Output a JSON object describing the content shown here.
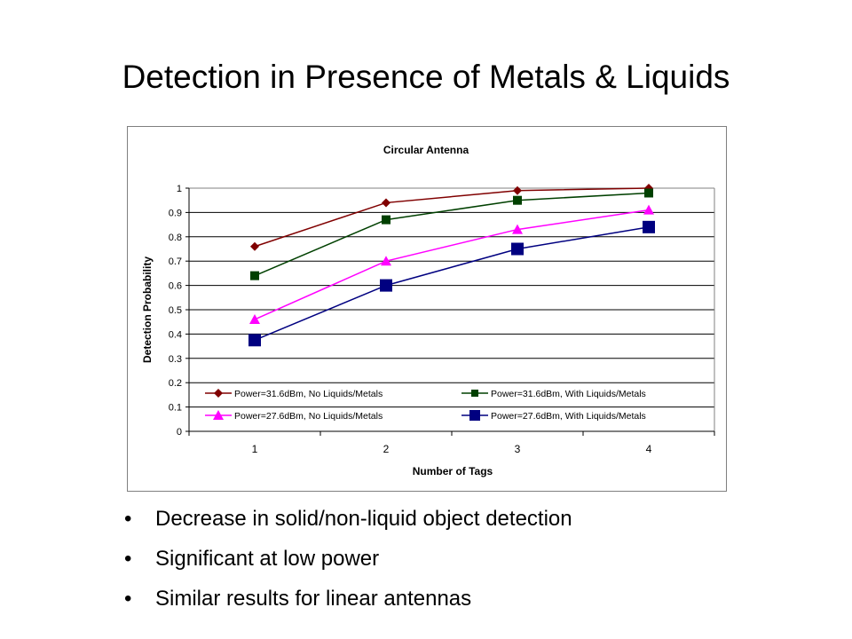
{
  "slide": {
    "title": "Detection in Presence of Metals & Liquids",
    "bullets": [
      "Decrease in solid/non-liquid object detection",
      "Significant at low power",
      "Similar results for linear antennas"
    ],
    "bullet_glyph": "•"
  },
  "chart_data": {
    "type": "line",
    "title": "Circular Antenna",
    "xlabel": "Number of Tags",
    "ylabel": "Detection Probability",
    "categories": [
      "1",
      "2",
      "3",
      "4"
    ],
    "ylim": [
      0,
      1
    ],
    "yticks": [
      "0",
      "0.1",
      "0.2",
      "0.3",
      "0.4",
      "0.5",
      "0.6",
      "0.7",
      "0.8",
      "0.9",
      "1"
    ],
    "grid": true,
    "legend_position": "inside-bottom",
    "series": [
      {
        "name": "Power=31.6dBm, No Liquids/Metals",
        "values": [
          0.76,
          0.94,
          0.99,
          1.0
        ],
        "color": "#800000",
        "marker": "diamond"
      },
      {
        "name": "Power=31.6dBm, With Liquids/Metals",
        "values": [
          0.64,
          0.87,
          0.95,
          0.98
        ],
        "color": "#004000",
        "marker": "square"
      },
      {
        "name": "Power=27.6dBm, No Liquids/Metals",
        "values": [
          0.46,
          0.7,
          0.83,
          0.91
        ],
        "color": "#ff00ff",
        "marker": "triangle"
      },
      {
        "name": "Power=27.6dBm, With Liquids/Metals",
        "values": [
          0.375,
          0.6,
          0.75,
          0.84
        ],
        "color": "#000080",
        "marker": "square"
      }
    ]
  }
}
